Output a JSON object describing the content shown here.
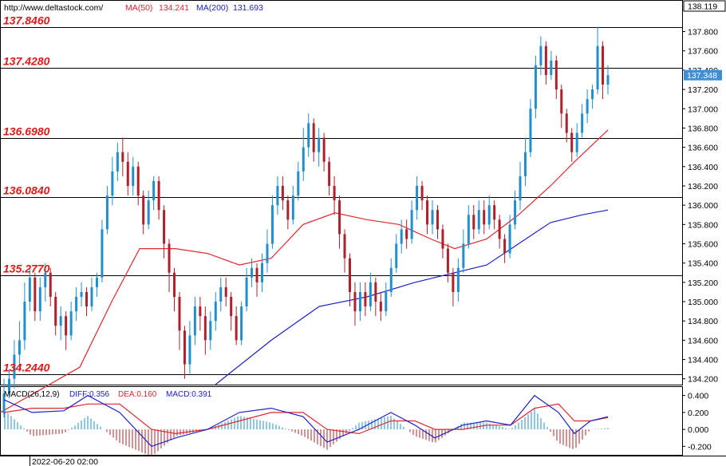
{
  "header": {
    "url": "http://www.deltastock.com/",
    "ma50_label": "MA(50)",
    "ma50_value": "134.241",
    "ma200_label": "MA(200)",
    "ma200_value": "131.693"
  },
  "macd_header": {
    "label": "MACD(26,12,9)",
    "diff": "DIFF:0.356",
    "dea": "DEA:0.160",
    "macd": "MACD:0.391"
  },
  "time_label": "2022-06-20 02:00",
  "colors": {
    "bull": "#1f8fcf",
    "bear": "#b0202a",
    "ma50": "#e0282e",
    "ma200": "#1c22c8",
    "level_text": "#e01818",
    "level_line": "#000000",
    "price_tag_bg": "#3f8fd8"
  },
  "chart_data": [
    {
      "type": "candlestick",
      "title": "",
      "y_axis": {
        "ticks": [
          "137.800",
          "137.600",
          "137.400",
          "137.200",
          "137.000",
          "136.800",
          "136.600",
          "136.400",
          "136.200",
          "136.000",
          "135.800",
          "135.600",
          "135.400",
          "135.200",
          "135.000",
          "134.800",
          "134.600",
          "134.400",
          "134.200"
        ],
        "range": [
          134.14,
          138.119
        ]
      },
      "price_markers": {
        "top": "138.119",
        "current": "137.348"
      },
      "levels": [
        {
          "label": "137.8460",
          "value": 137.846
        },
        {
          "label": "137.4280",
          "value": 137.428
        },
        {
          "label": "136.6980",
          "value": 136.698
        },
        {
          "label": "136.0840",
          "value": 136.084
        },
        {
          "label": "135.2770",
          "value": 135.277
        },
        {
          "label": "134.2440",
          "value": 134.244
        }
      ],
      "ma50": [
        [
          0,
          133.85
        ],
        [
          100,
          134.32
        ],
        [
          140,
          135.0
        ],
        [
          175,
          135.55
        ],
        [
          220,
          135.55
        ],
        [
          260,
          135.5
        ],
        [
          300,
          135.38
        ],
        [
          340,
          135.45
        ],
        [
          380,
          135.8
        ],
        [
          420,
          135.92
        ],
        [
          460,
          135.85
        ],
        [
          500,
          135.8
        ],
        [
          540,
          135.65
        ],
        [
          570,
          135.55
        ],
        [
          610,
          135.65
        ],
        [
          650,
          135.9
        ],
        [
          690,
          136.2
        ],
        [
          720,
          136.45
        ],
        [
          762,
          136.78
        ]
      ],
      "ma200": [
        [
          270,
          134.14
        ],
        [
          340,
          134.6
        ],
        [
          400,
          134.95
        ],
        [
          460,
          135.05
        ],
        [
          520,
          135.2
        ],
        [
          560,
          135.28
        ],
        [
          610,
          135.38
        ],
        [
          650,
          135.6
        ],
        [
          690,
          135.82
        ],
        [
          730,
          135.9
        ],
        [
          762,
          135.95
        ]
      ],
      "candles": [
        [
          133.84,
          134.05,
          133.8,
          134.2
        ],
        [
          134.05,
          134.2,
          134.0,
          134.3
        ],
        [
          134.2,
          134.45,
          134.1,
          134.6
        ],
        [
          134.45,
          134.6,
          134.3,
          134.8
        ],
        [
          134.6,
          135.0,
          134.5,
          135.2
        ],
        [
          135.0,
          135.25,
          134.9,
          135.35
        ],
        [
          135.25,
          134.9,
          134.8,
          135.3
        ],
        [
          134.9,
          135.15,
          134.8,
          135.25
        ],
        [
          135.15,
          135.3,
          135.0,
          135.4
        ],
        [
          135.3,
          135.05,
          134.95,
          135.35
        ],
        [
          135.05,
          134.75,
          134.65,
          135.1
        ],
        [
          134.75,
          134.85,
          134.6,
          134.95
        ],
        [
          134.85,
          134.65,
          134.5,
          134.9
        ],
        [
          134.65,
          134.9,
          134.6,
          135.0
        ],
        [
          134.9,
          135.05,
          134.8,
          135.15
        ],
        [
          135.05,
          135.1,
          134.95,
          135.2
        ],
        [
          135.1,
          134.95,
          134.85,
          135.15
        ],
        [
          134.95,
          135.15,
          134.9,
          135.25
        ],
        [
          135.15,
          135.25,
          135.05,
          135.3
        ],
        [
          135.25,
          135.75,
          135.2,
          135.85
        ],
        [
          135.75,
          136.1,
          135.7,
          136.2
        ],
        [
          136.1,
          136.35,
          136.0,
          136.5
        ],
        [
          136.35,
          136.55,
          136.25,
          136.65
        ],
        [
          136.55,
          136.45,
          136.3,
          136.7
        ],
        [
          136.45,
          136.2,
          136.1,
          136.55
        ],
        [
          136.2,
          136.4,
          136.1,
          136.5
        ],
        [
          136.4,
          136.1,
          136.0,
          136.45
        ],
        [
          136.1,
          135.8,
          135.7,
          136.15
        ],
        [
          135.8,
          136.05,
          135.75,
          136.15
        ],
        [
          136.05,
          136.25,
          135.95,
          136.3
        ],
        [
          136.25,
          135.95,
          135.85,
          136.3
        ],
        [
          135.95,
          135.6,
          135.45,
          136.0
        ],
        [
          135.6,
          135.3,
          135.1,
          135.65
        ],
        [
          135.3,
          135.05,
          134.9,
          135.35
        ],
        [
          135.05,
          134.7,
          134.5,
          135.1
        ],
        [
          134.7,
          134.35,
          134.2,
          134.75
        ],
        [
          134.35,
          134.65,
          134.25,
          134.8
        ],
        [
          134.65,
          134.95,
          134.55,
          135.05
        ],
        [
          134.95,
          134.85,
          134.7,
          135.05
        ],
        [
          134.85,
          134.6,
          134.45,
          134.95
        ],
        [
          134.6,
          134.8,
          134.5,
          134.9
        ],
        [
          134.8,
          135.0,
          134.7,
          135.1
        ],
        [
          135.0,
          135.15,
          134.9,
          135.25
        ],
        [
          135.15,
          135.05,
          134.95,
          135.25
        ],
        [
          135.05,
          134.85,
          134.7,
          135.1
        ],
        [
          134.85,
          134.6,
          134.55,
          134.95
        ],
        [
          134.6,
          134.95,
          134.55,
          135.0
        ],
        [
          134.95,
          135.25,
          134.9,
          135.35
        ],
        [
          135.25,
          135.35,
          135.15,
          135.45
        ],
        [
          135.35,
          135.2,
          135.05,
          135.4
        ],
        [
          135.2,
          135.4,
          135.1,
          135.5
        ],
        [
          135.4,
          135.6,
          135.3,
          135.75
        ],
        [
          135.6,
          136.0,
          135.55,
          136.1
        ],
        [
          136.0,
          136.2,
          135.9,
          136.3
        ],
        [
          136.2,
          136.05,
          135.95,
          136.3
        ],
        [
          136.05,
          135.85,
          135.75,
          136.1
        ],
        [
          135.85,
          136.1,
          135.8,
          136.2
        ],
        [
          136.1,
          136.35,
          136.05,
          136.45
        ],
        [
          136.35,
          136.6,
          136.25,
          136.8
        ],
        [
          136.6,
          136.85,
          136.5,
          136.95
        ],
        [
          136.85,
          136.55,
          136.45,
          136.9
        ],
        [
          136.55,
          136.7,
          136.4,
          136.8
        ],
        [
          136.7,
          136.45,
          136.35,
          136.75
        ],
        [
          136.45,
          136.2,
          136.1,
          136.5
        ],
        [
          136.2,
          136.05,
          135.9,
          136.3
        ],
        [
          136.05,
          135.7,
          135.55,
          136.1
        ],
        [
          135.7,
          135.45,
          135.3,
          135.75
        ],
        [
          135.45,
          135.1,
          134.95,
          135.5
        ],
        [
          135.1,
          134.9,
          134.75,
          135.2
        ],
        [
          134.9,
          135.1,
          134.8,
          135.2
        ],
        [
          135.1,
          134.95,
          134.85,
          135.2
        ],
        [
          134.95,
          135.2,
          134.9,
          135.3
        ],
        [
          135.2,
          135.0,
          134.85,
          135.25
        ],
        [
          135.0,
          134.9,
          134.8,
          135.1
        ],
        [
          134.9,
          135.1,
          134.85,
          135.2
        ],
        [
          135.1,
          135.35,
          135.05,
          135.45
        ],
        [
          135.35,
          135.6,
          135.3,
          135.7
        ],
        [
          135.6,
          135.75,
          135.5,
          135.85
        ],
        [
          135.75,
          135.65,
          135.55,
          135.85
        ],
        [
          135.65,
          135.95,
          135.6,
          136.05
        ],
        [
          135.95,
          136.2,
          135.85,
          136.3
        ],
        [
          136.2,
          136.05,
          135.95,
          136.25
        ],
        [
          136.05,
          135.8,
          135.7,
          136.1
        ],
        [
          135.8,
          135.95,
          135.7,
          136.05
        ],
        [
          135.95,
          135.75,
          135.65,
          136.0
        ],
        [
          135.75,
          135.55,
          135.45,
          135.8
        ],
        [
          135.55,
          135.3,
          135.2,
          135.6
        ],
        [
          135.3,
          135.1,
          134.95,
          135.35
        ],
        [
          135.1,
          135.35,
          135.0,
          135.45
        ],
        [
          135.35,
          135.6,
          135.3,
          135.75
        ],
        [
          135.6,
          135.9,
          135.55,
          136.0
        ],
        [
          135.9,
          135.75,
          135.65,
          136.0
        ],
        [
          135.75,
          135.95,
          135.7,
          136.05
        ],
        [
          135.95,
          135.8,
          135.7,
          136.05
        ],
        [
          135.8,
          136.0,
          135.75,
          136.1
        ],
        [
          136.0,
          135.85,
          135.75,
          136.05
        ],
        [
          135.85,
          135.65,
          135.55,
          135.9
        ],
        [
          135.65,
          135.5,
          135.4,
          135.7
        ],
        [
          135.5,
          135.8,
          135.45,
          135.9
        ],
        [
          135.8,
          136.05,
          135.75,
          136.15
        ],
        [
          136.05,
          136.3,
          135.95,
          136.45
        ],
        [
          136.3,
          136.55,
          136.2,
          136.7
        ],
        [
          136.55,
          137.0,
          136.5,
          137.1
        ],
        [
          137.0,
          137.45,
          136.9,
          137.55
        ],
        [
          137.45,
          137.65,
          137.35,
          137.75
        ],
        [
          137.65,
          137.35,
          137.25,
          137.7
        ],
        [
          137.35,
          137.5,
          137.3,
          137.6
        ],
        [
          137.5,
          137.2,
          137.1,
          137.55
        ],
        [
          137.2,
          136.95,
          136.8,
          137.25
        ],
        [
          136.95,
          136.75,
          136.65,
          137.0
        ],
        [
          136.75,
          136.55,
          136.45,
          136.8
        ],
        [
          136.55,
          136.75,
          136.5,
          136.85
        ],
        [
          136.75,
          136.95,
          136.7,
          137.05
        ],
        [
          136.95,
          137.1,
          136.85,
          137.2
        ],
        [
          137.1,
          137.2,
          137.0,
          137.25
        ],
        [
          137.2,
          137.65,
          137.15,
          137.85
        ],
        [
          137.65,
          137.25,
          137.1,
          137.7
        ],
        [
          137.25,
          137.348,
          137.15,
          137.45
        ]
      ]
    },
    {
      "type": "macd",
      "title": "",
      "y_axis": {
        "ticks": [
          "0.400",
          "0.200",
          "0.000",
          "-0.200"
        ],
        "range": [
          -0.3,
          0.5
        ]
      },
      "diff": [
        [
          5,
          0.35
        ],
        [
          40,
          0.2
        ],
        [
          80,
          0.22
        ],
        [
          110,
          0.4
        ],
        [
          150,
          0.2
        ],
        [
          190,
          -0.2
        ],
        [
          220,
          -0.1
        ],
        [
          260,
          0.0
        ],
        [
          300,
          0.2
        ],
        [
          340,
          0.25
        ],
        [
          380,
          0.15
        ],
        [
          410,
          -0.15
        ],
        [
          450,
          0.0
        ],
        [
          490,
          0.2
        ],
        [
          520,
          0.05
        ],
        [
          545,
          -0.1
        ],
        [
          580,
          0.05
        ],
        [
          610,
          0.1
        ],
        [
          640,
          0.05
        ],
        [
          670,
          0.4
        ],
        [
          700,
          0.2
        ],
        [
          720,
          -0.05
        ],
        [
          740,
          0.1
        ],
        [
          762,
          0.15
        ]
      ],
      "dea": [
        [
          5,
          0.2
        ],
        [
          40,
          0.25
        ],
        [
          80,
          0.25
        ],
        [
          110,
          0.3
        ],
        [
          150,
          0.3
        ],
        [
          190,
          0.0
        ],
        [
          220,
          -0.05
        ],
        [
          260,
          0.0
        ],
        [
          300,
          0.1
        ],
        [
          340,
          0.2
        ],
        [
          380,
          0.2
        ],
        [
          410,
          0.0
        ],
        [
          450,
          -0.05
        ],
        [
          490,
          0.1
        ],
        [
          520,
          0.1
        ],
        [
          545,
          0.0
        ],
        [
          580,
          0.0
        ],
        [
          610,
          0.05
        ],
        [
          640,
          0.05
        ],
        [
          670,
          0.25
        ],
        [
          700,
          0.3
        ],
        [
          720,
          0.1
        ],
        [
          740,
          0.1
        ],
        [
          762,
          0.14
        ]
      ]
    }
  ]
}
